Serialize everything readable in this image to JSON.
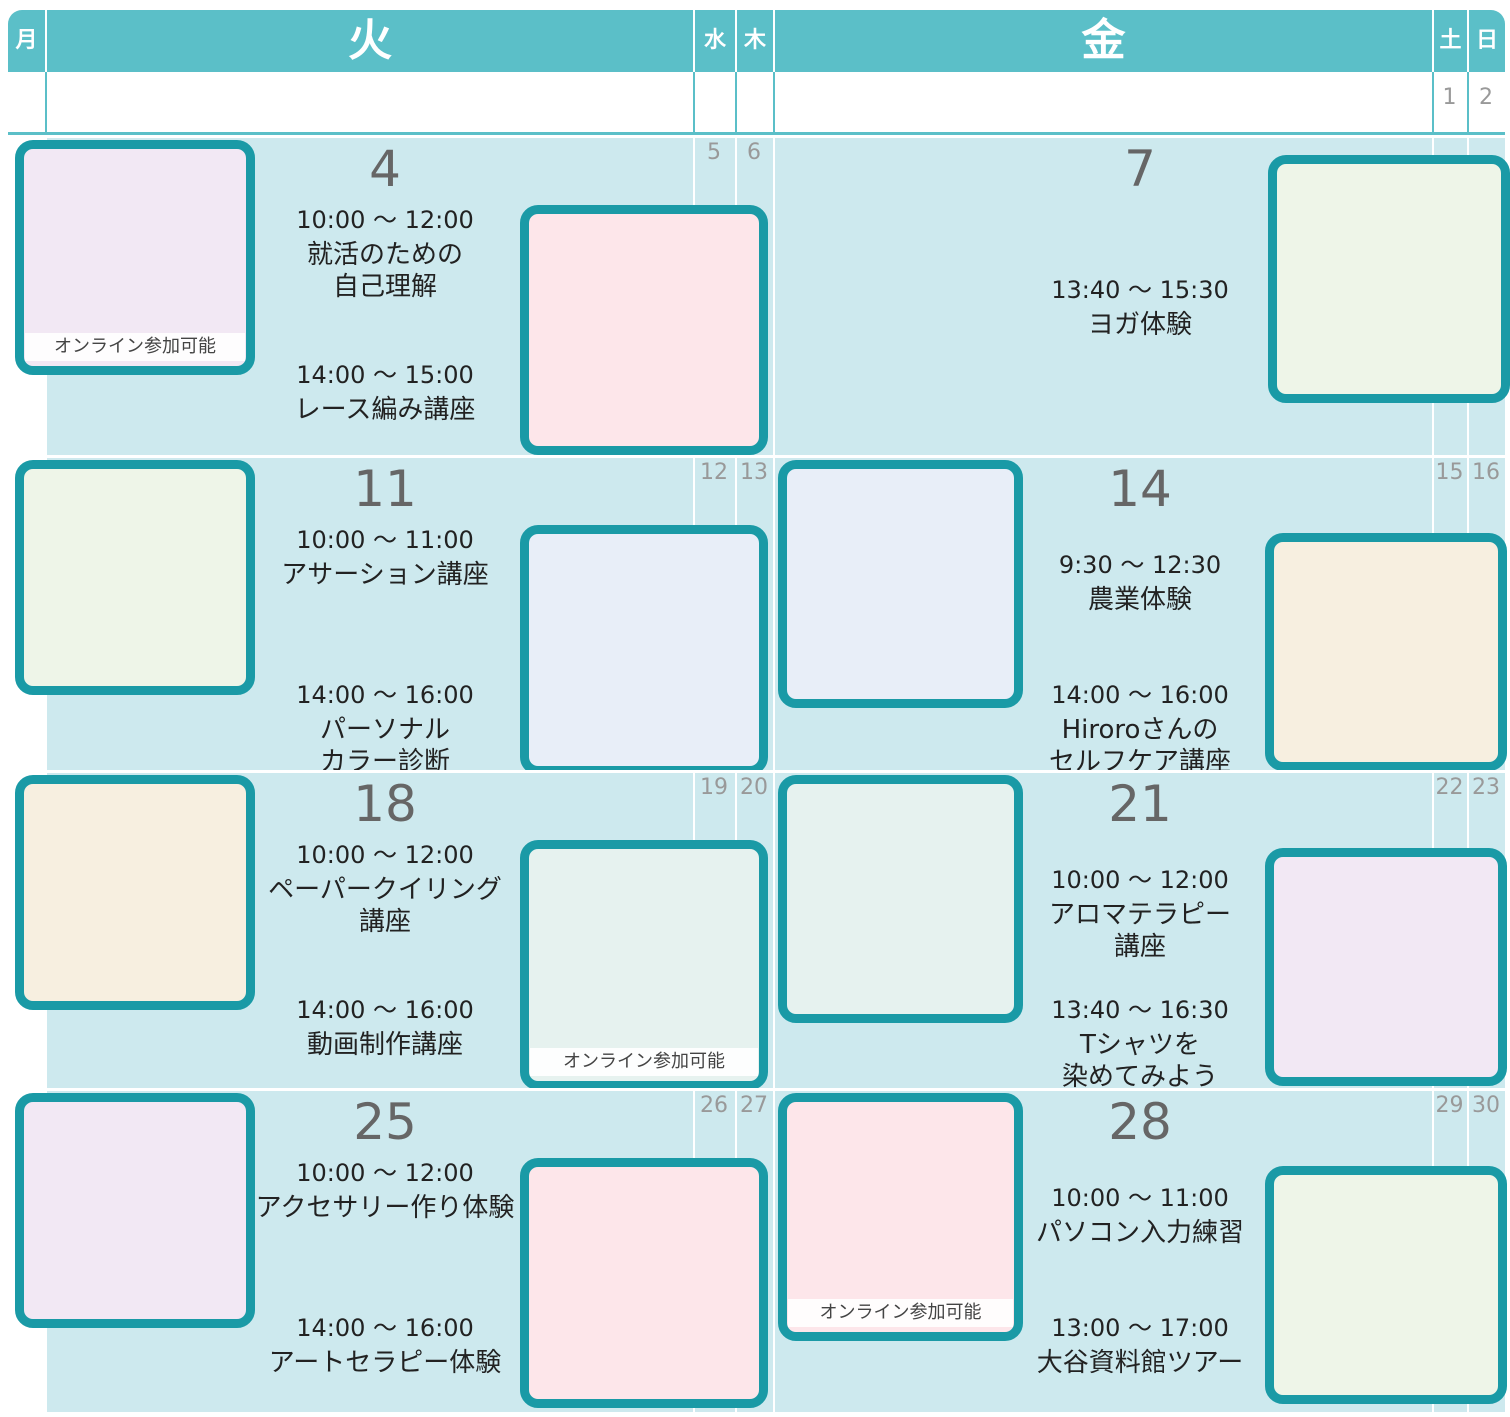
{
  "header": {
    "days": [
      "月",
      "火",
      "水",
      "木",
      "金",
      "土",
      "日"
    ]
  },
  "top_row": {
    "sat": "1",
    "sun": "2"
  },
  "weeks": [
    {
      "small": {
        "wed": "5",
        "thu": "6"
      },
      "tue": {
        "date": "4",
        "sessions": [
          {
            "time": "10:00 ～ 12:00",
            "title": [
              "就活のための",
              "自己理解"
            ],
            "badge": "オンライン参加可能"
          },
          {
            "time": "14:00 ～ 15:00",
            "title": [
              "レース編み講座"
            ]
          }
        ]
      },
      "fri": {
        "date": "7",
        "sessions": [
          {
            "time": "13:40 ～ 15:30",
            "title": [
              "ヨガ体験"
            ]
          }
        ]
      }
    },
    {
      "small": {
        "wed": "12",
        "thu": "13",
        "sat": "15",
        "sun": "16"
      },
      "tue": {
        "date": "11",
        "sessions": [
          {
            "time": "10:00 ～ 11:00",
            "title": [
              "アサーション講座"
            ]
          },
          {
            "time": "14:00 ～ 16:00",
            "title": [
              "パーソナル",
              "カラー診断"
            ]
          }
        ]
      },
      "fri": {
        "date": "14",
        "sessions": [
          {
            "time": "9:30 ～ 12:30",
            "title": [
              "農業体験"
            ]
          },
          {
            "time": "14:00 ～ 16:00",
            "title": [
              "Hiroroさんの",
              "セルフケア講座"
            ]
          }
        ]
      }
    },
    {
      "small": {
        "wed": "19",
        "thu": "20",
        "sat": "22",
        "sun": "23"
      },
      "tue": {
        "date": "18",
        "sessions": [
          {
            "time": "10:00 ～ 12:00",
            "title": [
              "ペーパークイリング",
              "講座"
            ]
          },
          {
            "time": "14:00 ～ 16:00",
            "title": [
              "動画制作講座"
            ],
            "badge": "オンライン参加可能"
          }
        ]
      },
      "fri": {
        "date": "21",
        "sessions": [
          {
            "time": "10:00 ～ 12:00",
            "title": [
              "アロマテラピー",
              "講座"
            ]
          },
          {
            "time": "13:40 ～ 16:30",
            "title": [
              "Tシャツを",
              "染めてみよう"
            ]
          }
        ]
      }
    },
    {
      "small": {
        "wed": "26",
        "thu": "27",
        "sat": "29",
        "sun": "30"
      },
      "tue": {
        "date": "25",
        "sessions": [
          {
            "time": "10:00 ～ 12:00",
            "title": [
              "アクセサリー作り体験"
            ]
          },
          {
            "time": "14:00 ～ 16:00",
            "title": [
              "アートセラピー体験"
            ]
          }
        ]
      },
      "fri": {
        "date": "28",
        "sessions": [
          {
            "time": "10:00 ～ 11:00",
            "title": [
              "パソコン入力練習"
            ],
            "badge": "オンライン参加可能"
          },
          {
            "time": "13:00 ～ 17:00",
            "title": [
              "大谷資料館ツアー"
            ]
          }
        ]
      }
    }
  ]
}
